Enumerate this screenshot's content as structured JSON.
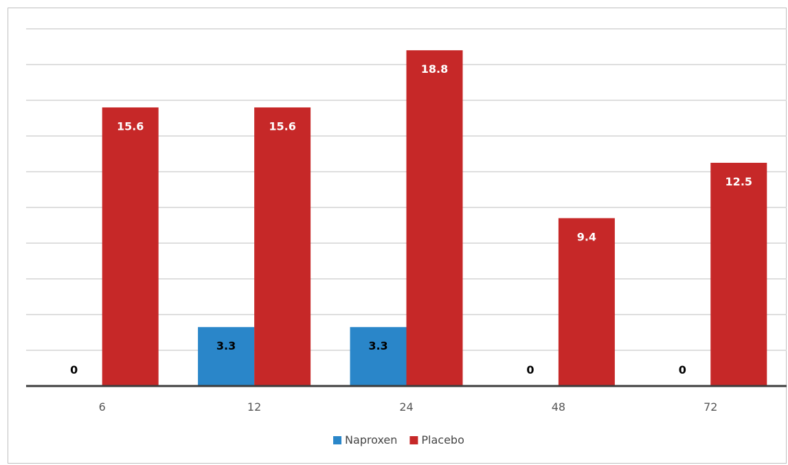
{
  "chart_data": {
    "type": "bar",
    "title": "",
    "xlabel": "",
    "ylabel": "",
    "categories": [
      "6",
      "12",
      "24",
      "48",
      "72"
    ],
    "series": [
      {
        "name": "Naproxen",
        "color": "#2a86c9",
        "values": [
          0,
          3.3,
          3.3,
          0,
          0
        ],
        "labels": [
          "0",
          "3.3",
          "3.3",
          "0",
          "0"
        ],
        "label_color": "#000000"
      },
      {
        "name": "Placebo",
        "color": "#c62828",
        "values": [
          15.6,
          15.6,
          18.8,
          9.4,
          12.5
        ],
        "labels": [
          "15.6",
          "15.6",
          "18.8",
          "9.4",
          "12.5"
        ],
        "label_color": "#ffffff"
      }
    ],
    "ylim": [
      0,
      20
    ],
    "gridlines": true,
    "legend_position": "bottom"
  }
}
